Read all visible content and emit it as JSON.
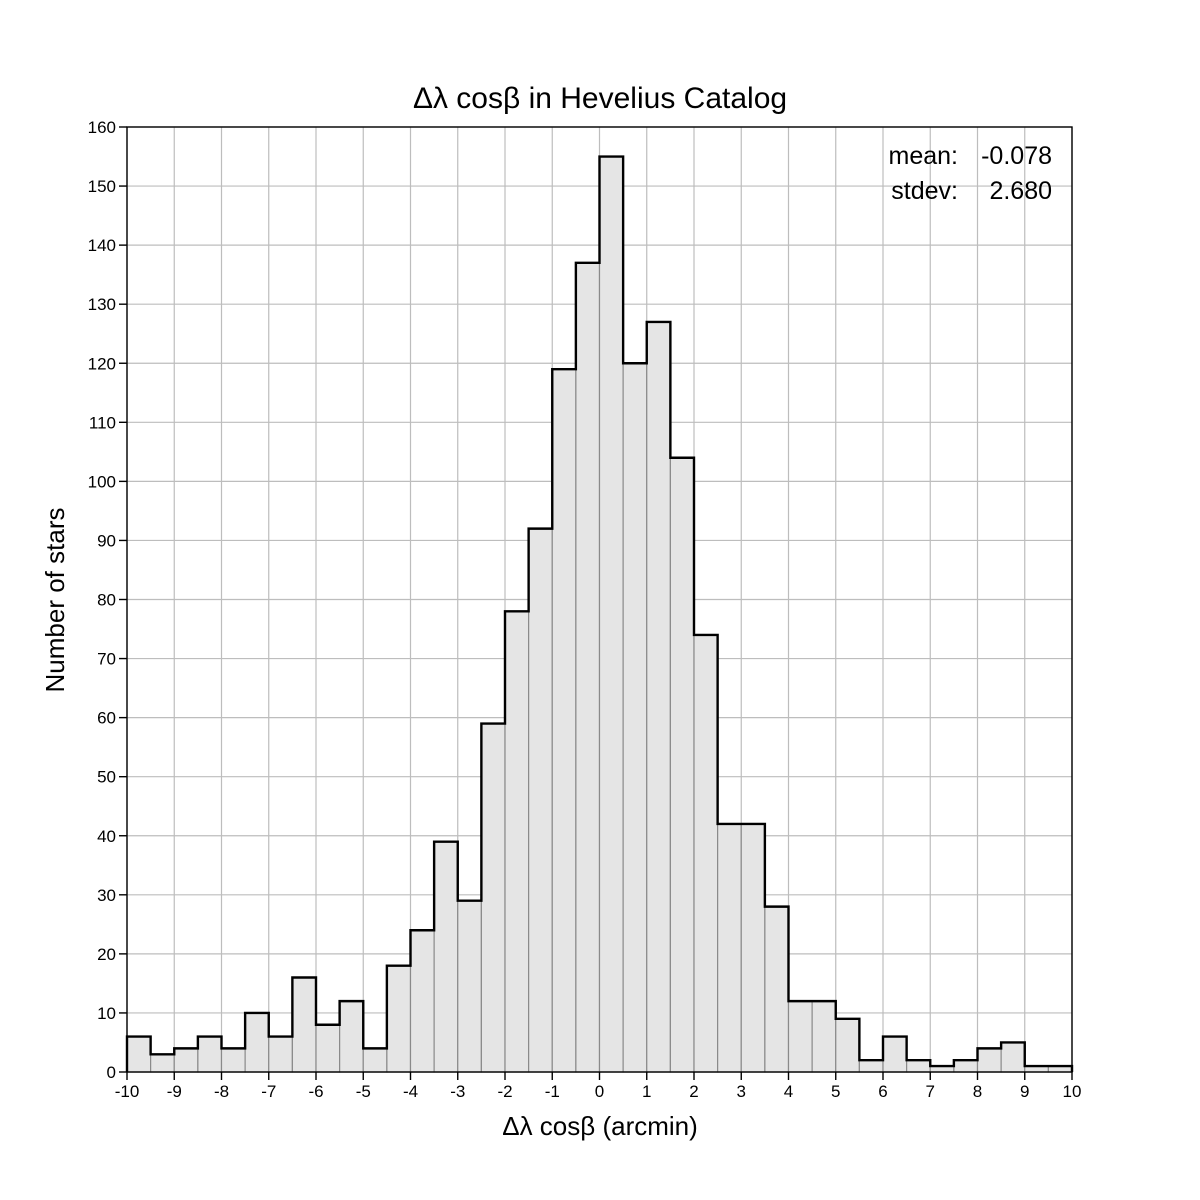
{
  "chart_data": {
    "type": "bar",
    "title": "Δλ cosβ in Hevelius Catalog",
    "xlabel": "Δλ cosβ (arcmin)",
    "ylabel": "Number of stars",
    "xlim": [
      -10,
      10
    ],
    "ylim": [
      0,
      160
    ],
    "x_ticks": [
      -10,
      -9,
      -8,
      -7,
      -6,
      -5,
      -4,
      -3,
      -2,
      -1,
      0,
      1,
      2,
      3,
      4,
      5,
      6,
      7,
      8,
      9,
      10
    ],
    "y_ticks": [
      0,
      10,
      20,
      30,
      40,
      50,
      60,
      70,
      80,
      90,
      100,
      110,
      120,
      130,
      140,
      150,
      160
    ],
    "bin_width": 0.5,
    "bin_edges_start": -10,
    "values": [
      6,
      3,
      4,
      6,
      4,
      10,
      6,
      16,
      8,
      12,
      4,
      18,
      24,
      39,
      29,
      59,
      78,
      92,
      119,
      137,
      155,
      120,
      127,
      104,
      74,
      42,
      42,
      28,
      12,
      12,
      9,
      2,
      6,
      2,
      1,
      2,
      4,
      5,
      1,
      1
    ],
    "grid": true,
    "stats": {
      "mean_label": "mean:",
      "mean_value": "-0.078",
      "stdev_label": "stdev:",
      "stdev_value": "2.680"
    },
    "colors": {
      "bar_fill": "#e5e5e5",
      "bar_edge": "#8a8a8a",
      "outline": "#000000",
      "grid": "#bdbdbd"
    }
  }
}
